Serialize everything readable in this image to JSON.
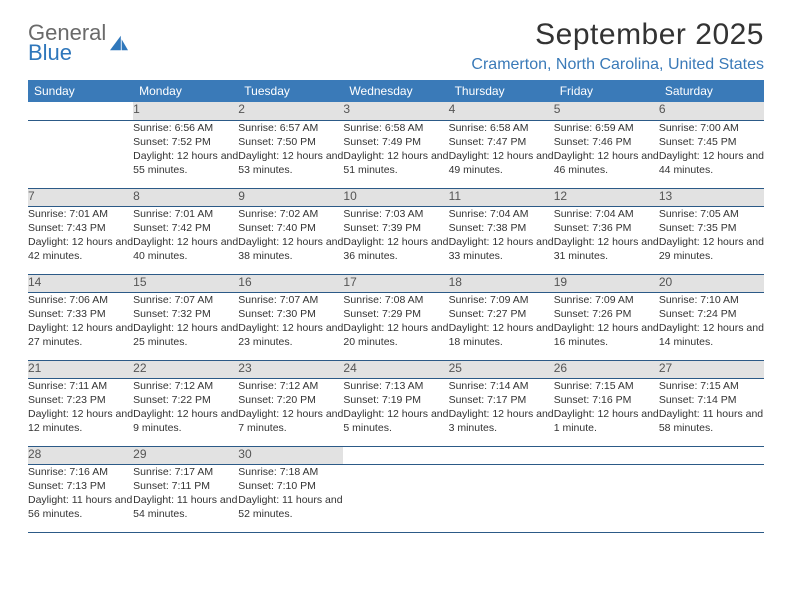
{
  "logo": {
    "text_top": "General",
    "text_bottom": "Blue",
    "mark_color": "#2f77bb"
  },
  "header": {
    "month_title": "September 2025",
    "location": "Cramerton, North Carolina, United States"
  },
  "colors": {
    "header_bg": "#3a7ab8",
    "header_text": "#ffffff",
    "daynum_bg": "#e2e2e2",
    "daynum_text": "#555555",
    "cell_text": "#333333",
    "rule": "#2c5a87",
    "location_text": "#3a7ab8"
  },
  "weekdays": [
    "Sunday",
    "Monday",
    "Tuesday",
    "Wednesday",
    "Thursday",
    "Friday",
    "Saturday"
  ],
  "weeks": [
    [
      null,
      {
        "n": "1",
        "sr": "6:56 AM",
        "ss": "7:52 PM",
        "dl": "12 hours and 55 minutes."
      },
      {
        "n": "2",
        "sr": "6:57 AM",
        "ss": "7:50 PM",
        "dl": "12 hours and 53 minutes."
      },
      {
        "n": "3",
        "sr": "6:58 AM",
        "ss": "7:49 PM",
        "dl": "12 hours and 51 minutes."
      },
      {
        "n": "4",
        "sr": "6:58 AM",
        "ss": "7:47 PM",
        "dl": "12 hours and 49 minutes."
      },
      {
        "n": "5",
        "sr": "6:59 AM",
        "ss": "7:46 PM",
        "dl": "12 hours and 46 minutes."
      },
      {
        "n": "6",
        "sr": "7:00 AM",
        "ss": "7:45 PM",
        "dl": "12 hours and 44 minutes."
      }
    ],
    [
      {
        "n": "7",
        "sr": "7:01 AM",
        "ss": "7:43 PM",
        "dl": "12 hours and 42 minutes."
      },
      {
        "n": "8",
        "sr": "7:01 AM",
        "ss": "7:42 PM",
        "dl": "12 hours and 40 minutes."
      },
      {
        "n": "9",
        "sr": "7:02 AM",
        "ss": "7:40 PM",
        "dl": "12 hours and 38 minutes."
      },
      {
        "n": "10",
        "sr": "7:03 AM",
        "ss": "7:39 PM",
        "dl": "12 hours and 36 minutes."
      },
      {
        "n": "11",
        "sr": "7:04 AM",
        "ss": "7:38 PM",
        "dl": "12 hours and 33 minutes."
      },
      {
        "n": "12",
        "sr": "7:04 AM",
        "ss": "7:36 PM",
        "dl": "12 hours and 31 minutes."
      },
      {
        "n": "13",
        "sr": "7:05 AM",
        "ss": "7:35 PM",
        "dl": "12 hours and 29 minutes."
      }
    ],
    [
      {
        "n": "14",
        "sr": "7:06 AM",
        "ss": "7:33 PM",
        "dl": "12 hours and 27 minutes."
      },
      {
        "n": "15",
        "sr": "7:07 AM",
        "ss": "7:32 PM",
        "dl": "12 hours and 25 minutes."
      },
      {
        "n": "16",
        "sr": "7:07 AM",
        "ss": "7:30 PM",
        "dl": "12 hours and 23 minutes."
      },
      {
        "n": "17",
        "sr": "7:08 AM",
        "ss": "7:29 PM",
        "dl": "12 hours and 20 minutes."
      },
      {
        "n": "18",
        "sr": "7:09 AM",
        "ss": "7:27 PM",
        "dl": "12 hours and 18 minutes."
      },
      {
        "n": "19",
        "sr": "7:09 AM",
        "ss": "7:26 PM",
        "dl": "12 hours and 16 minutes."
      },
      {
        "n": "20",
        "sr": "7:10 AM",
        "ss": "7:24 PM",
        "dl": "12 hours and 14 minutes."
      }
    ],
    [
      {
        "n": "21",
        "sr": "7:11 AM",
        "ss": "7:23 PM",
        "dl": "12 hours and 12 minutes."
      },
      {
        "n": "22",
        "sr": "7:12 AM",
        "ss": "7:22 PM",
        "dl": "12 hours and 9 minutes."
      },
      {
        "n": "23",
        "sr": "7:12 AM",
        "ss": "7:20 PM",
        "dl": "12 hours and 7 minutes."
      },
      {
        "n": "24",
        "sr": "7:13 AM",
        "ss": "7:19 PM",
        "dl": "12 hours and 5 minutes."
      },
      {
        "n": "25",
        "sr": "7:14 AM",
        "ss": "7:17 PM",
        "dl": "12 hours and 3 minutes."
      },
      {
        "n": "26",
        "sr": "7:15 AM",
        "ss": "7:16 PM",
        "dl": "12 hours and 1 minute."
      },
      {
        "n": "27",
        "sr": "7:15 AM",
        "ss": "7:14 PM",
        "dl": "11 hours and 58 minutes."
      }
    ],
    [
      {
        "n": "28",
        "sr": "7:16 AM",
        "ss": "7:13 PM",
        "dl": "11 hours and 56 minutes."
      },
      {
        "n": "29",
        "sr": "7:17 AM",
        "ss": "7:11 PM",
        "dl": "11 hours and 54 minutes."
      },
      {
        "n": "30",
        "sr": "7:18 AM",
        "ss": "7:10 PM",
        "dl": "11 hours and 52 minutes."
      },
      null,
      null,
      null,
      null
    ]
  ],
  "labels": {
    "sunrise": "Sunrise:",
    "sunset": "Sunset:",
    "daylight": "Daylight:"
  }
}
